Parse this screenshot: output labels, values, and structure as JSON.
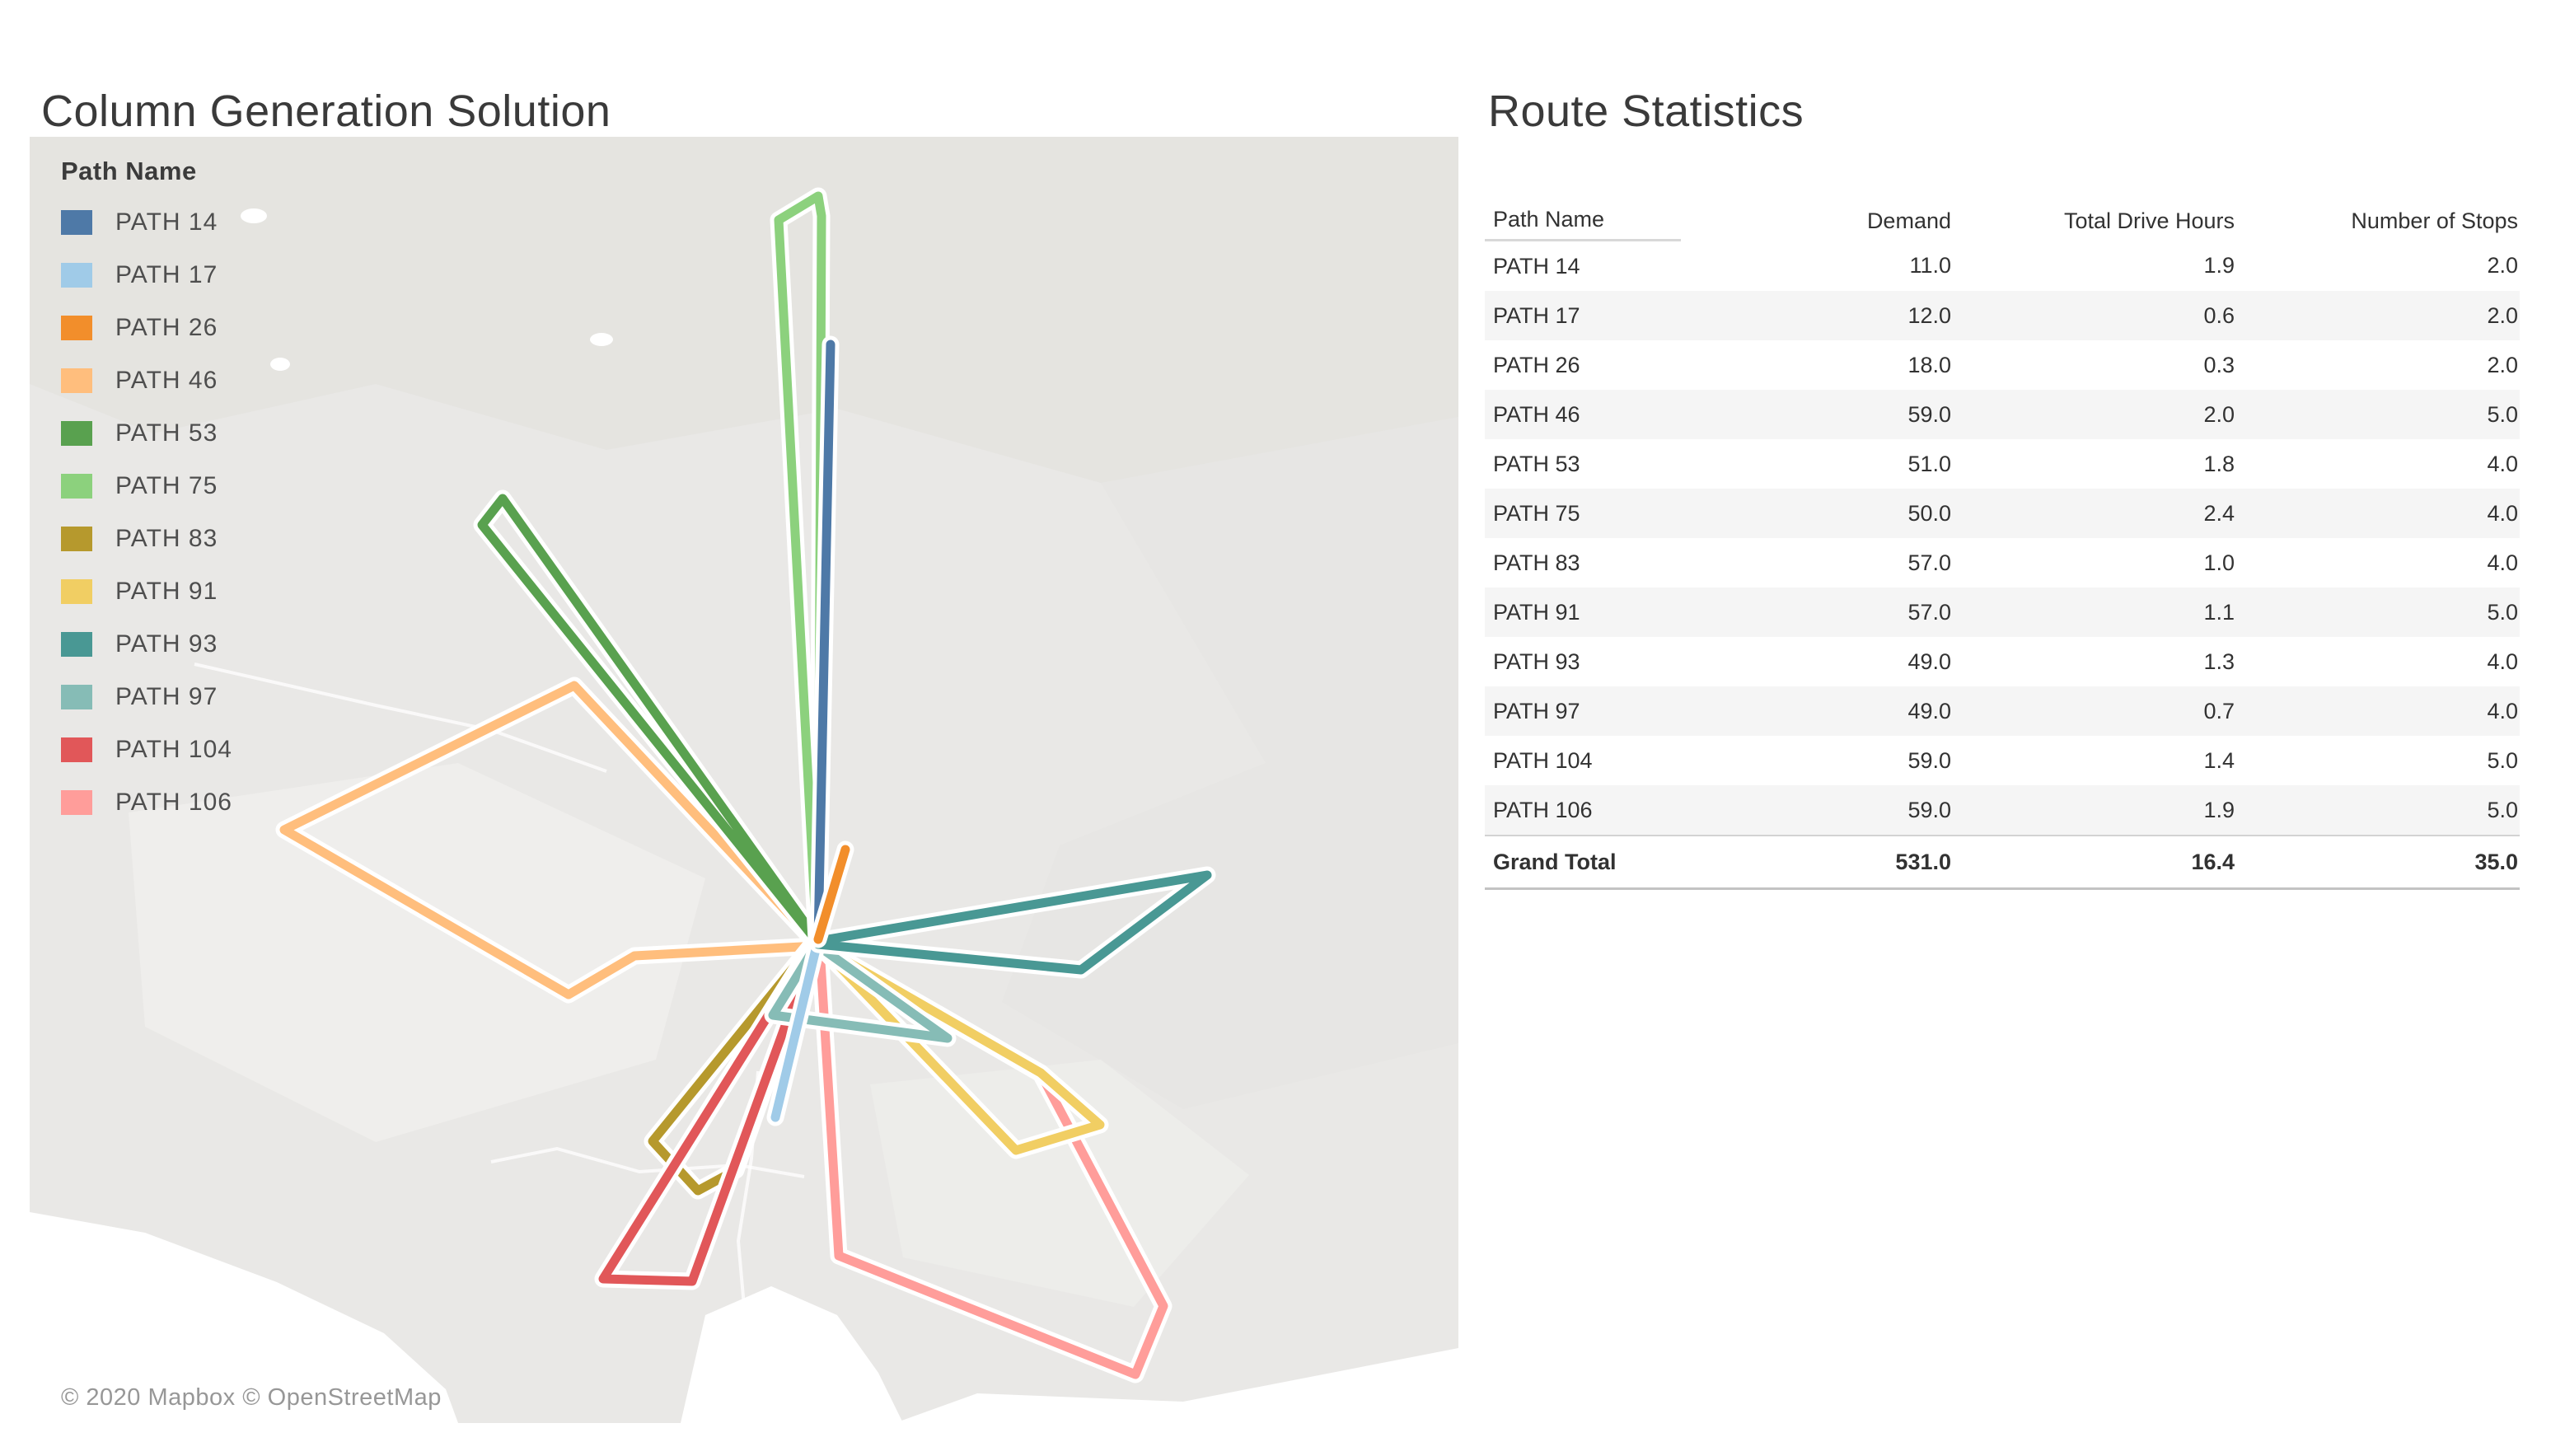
{
  "titles": {
    "map_panel": "Column Generation Solution",
    "table_panel": "Route Statistics"
  },
  "legend": {
    "title": "Path Name",
    "items": [
      {
        "label": "PATH 14",
        "color": "#4e79a7"
      },
      {
        "label": "PATH 17",
        "color": "#a0cbe8"
      },
      {
        "label": "PATH 26",
        "color": "#f28e2b"
      },
      {
        "label": "PATH 46",
        "color": "#ffbe7d"
      },
      {
        "label": "PATH 53",
        "color": "#59a14f"
      },
      {
        "label": "PATH 75",
        "color": "#8cd17d"
      },
      {
        "label": "PATH 83",
        "color": "#b6992d"
      },
      {
        "label": "PATH 91",
        "color": "#f1ce63"
      },
      {
        "label": "PATH 93",
        "color": "#499894"
      },
      {
        "label": "PATH 97",
        "color": "#86bcb6"
      },
      {
        "label": "PATH 104",
        "color": "#e15759"
      },
      {
        "label": "PATH 106",
        "color": "#ff9d9a"
      }
    ]
  },
  "map": {
    "attribution": "© 2020 Mapbox © OpenStreetMap",
    "routes": [
      {
        "name": "PATH 46",
        "color": "#ffbe7d",
        "points": [
          [
            955,
            979
          ],
          [
            661,
            666
          ],
          [
            309,
            841
          ],
          [
            654,
            1041
          ],
          [
            734,
            994
          ],
          [
            955,
            982
          ]
        ]
      },
      {
        "name": "PATH 83",
        "color": "#b6992d",
        "points": [
          [
            953,
            976
          ],
          [
            756,
            1219
          ],
          [
            811,
            1279
          ],
          [
            857,
            1254
          ],
          [
            953,
            980
          ]
        ]
      },
      {
        "name": "PATH 104",
        "color": "#e15759",
        "points": [
          [
            953,
            976
          ],
          [
            696,
            1386
          ],
          [
            804,
            1389
          ],
          [
            953,
            980
          ]
        ]
      },
      {
        "name": "PATH 106",
        "color": "#ff9d9a",
        "points": [
          [
            959,
            984
          ],
          [
            982,
            1358
          ],
          [
            1342,
            1502
          ],
          [
            1376,
            1419
          ],
          [
            1227,
            1137
          ],
          [
            961,
            984
          ]
        ]
      },
      {
        "name": "PATH 91",
        "color": "#f1ce63",
        "points": [
          [
            959,
            982
          ],
          [
            1227,
            1136
          ],
          [
            1299,
            1199
          ],
          [
            1197,
            1230
          ],
          [
            959,
            982
          ]
        ]
      },
      {
        "name": "PATH 97",
        "color": "#86bcb6",
        "points": [
          [
            955,
            980
          ],
          [
            902,
            1066
          ],
          [
            1114,
            1094
          ],
          [
            957,
            982
          ]
        ]
      },
      {
        "name": "PATH 17",
        "color": "#a0cbe8",
        "points": [
          [
            955,
            982
          ],
          [
            905,
            1190
          ]
        ]
      },
      {
        "name": "PATH 53",
        "color": "#59a14f",
        "points": [
          [
            955,
            974
          ],
          [
            574,
            439
          ],
          [
            549,
            471
          ],
          [
            955,
            976
          ]
        ]
      },
      {
        "name": "PATH 75",
        "color": "#8cd17d",
        "points": [
          [
            955,
            974
          ],
          [
            909,
            101
          ],
          [
            957,
            72
          ],
          [
            961,
            96
          ],
          [
            957,
            974
          ]
        ]
      },
      {
        "name": "PATH 14",
        "color": "#4e79a7",
        "points": [
          [
            957,
            974
          ],
          [
            972,
            252
          ]
        ]
      },
      {
        "name": "PATH 93",
        "color": "#499894",
        "points": [
          [
            957,
            976
          ],
          [
            1429,
            896
          ],
          [
            1276,
            1011
          ],
          [
            957,
            980
          ]
        ]
      },
      {
        "name": "PATH 26",
        "color": "#f28e2b",
        "points": [
          [
            957,
            974
          ],
          [
            990,
            865
          ]
        ]
      }
    ]
  },
  "table": {
    "columns": [
      "Path Name",
      "Demand",
      "Total Drive Hours",
      "Number of Stops"
    ],
    "rows": [
      [
        "PATH 14",
        "11.0",
        "1.9",
        "2.0"
      ],
      [
        "PATH 17",
        "12.0",
        "0.6",
        "2.0"
      ],
      [
        "PATH 26",
        "18.0",
        "0.3",
        "2.0"
      ],
      [
        "PATH 46",
        "59.0",
        "2.0",
        "5.0"
      ],
      [
        "PATH 53",
        "51.0",
        "1.8",
        "4.0"
      ],
      [
        "PATH 75",
        "50.0",
        "2.4",
        "4.0"
      ],
      [
        "PATH 83",
        "57.0",
        "1.0",
        "4.0"
      ],
      [
        "PATH 91",
        "57.0",
        "1.1",
        "5.0"
      ],
      [
        "PATH 93",
        "49.0",
        "1.3",
        "4.0"
      ],
      [
        "PATH 97",
        "49.0",
        "0.7",
        "4.0"
      ],
      [
        "PATH 104",
        "59.0",
        "1.4",
        "5.0"
      ],
      [
        "PATH 106",
        "59.0",
        "1.9",
        "5.0"
      ]
    ],
    "grand_total": [
      "Grand Total",
      "531.0",
      "16.4",
      "35.0"
    ]
  },
  "chart_data": [
    {
      "type": "table",
      "title": "Route Statistics",
      "columns": [
        "Path Name",
        "Demand",
        "Total Drive Hours",
        "Number of Stops"
      ],
      "rows": [
        {
          "path": "PATH 14",
          "demand": 11.0,
          "total_drive_hours": 1.9,
          "number_of_stops": 2.0
        },
        {
          "path": "PATH 17",
          "demand": 12.0,
          "total_drive_hours": 0.6,
          "number_of_stops": 2.0
        },
        {
          "path": "PATH 26",
          "demand": 18.0,
          "total_drive_hours": 0.3,
          "number_of_stops": 2.0
        },
        {
          "path": "PATH 46",
          "demand": 59.0,
          "total_drive_hours": 2.0,
          "number_of_stops": 5.0
        },
        {
          "path": "PATH 53",
          "demand": 51.0,
          "total_drive_hours": 1.8,
          "number_of_stops": 4.0
        },
        {
          "path": "PATH 75",
          "demand": 50.0,
          "total_drive_hours": 2.4,
          "number_of_stops": 4.0
        },
        {
          "path": "PATH 83",
          "demand": 57.0,
          "total_drive_hours": 1.0,
          "number_of_stops": 4.0
        },
        {
          "path": "PATH 91",
          "demand": 57.0,
          "total_drive_hours": 1.1,
          "number_of_stops": 5.0
        },
        {
          "path": "PATH 93",
          "demand": 49.0,
          "total_drive_hours": 1.3,
          "number_of_stops": 4.0
        },
        {
          "path": "PATH 97",
          "demand": 49.0,
          "total_drive_hours": 0.7,
          "number_of_stops": 4.0
        },
        {
          "path": "PATH 104",
          "demand": 59.0,
          "total_drive_hours": 1.4,
          "number_of_stops": 5.0
        },
        {
          "path": "PATH 106",
          "demand": 59.0,
          "total_drive_hours": 1.9,
          "number_of_stops": 5.0
        }
      ],
      "grand_total": {
        "demand": 531.0,
        "total_drive_hours": 16.4,
        "number_of_stops": 35.0
      }
    },
    {
      "type": "map",
      "title": "Column Generation Solution",
      "legend_title": "Path Name",
      "series": [
        "PATH 14",
        "PATH 17",
        "PATH 26",
        "PATH 46",
        "PATH 53",
        "PATH 75",
        "PATH 83",
        "PATH 91",
        "PATH 93",
        "PATH 97",
        "PATH 104",
        "PATH 106"
      ],
      "description": "Vehicle routing paths radiating from a single central depot drawn over a light gray Mapbox basemap"
    }
  ]
}
